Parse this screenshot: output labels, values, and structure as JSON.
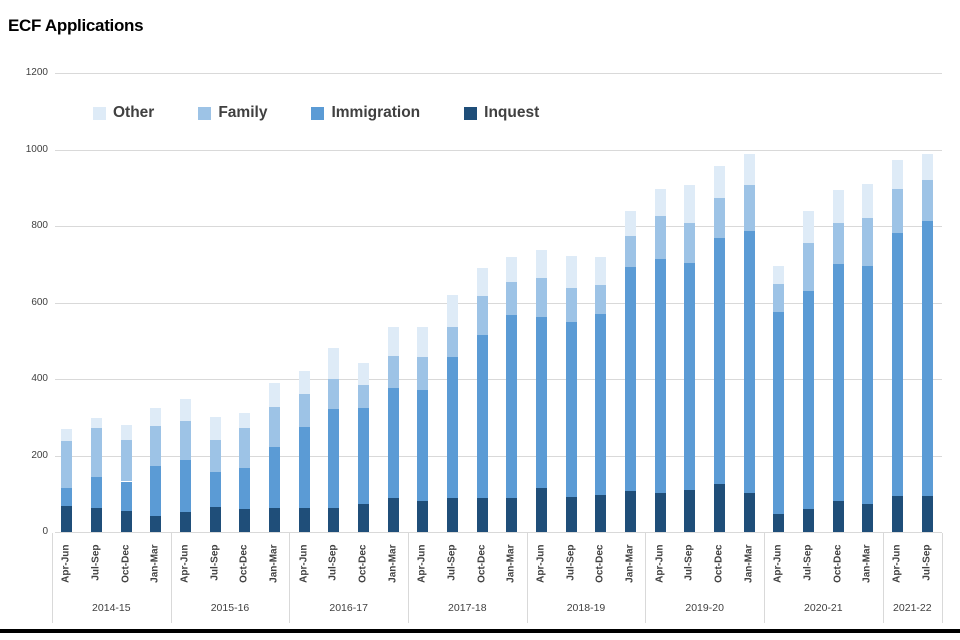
{
  "page": {
    "title": "ECF Applications"
  },
  "chart_data": {
    "type": "bar",
    "stacked": true,
    "title": "ECF Applications",
    "grid": true,
    "legend_position": "inside-top-left",
    "legend": [
      {
        "label": "Other",
        "color": "#deebf7"
      },
      {
        "label": "Family",
        "color": "#9dc3e6"
      },
      {
        "label": "Immigration",
        "color": "#5b9bd5"
      },
      {
        "label": "Inquest",
        "color": "#1f4e79"
      }
    ],
    "ylim": [
      0,
      1200
    ],
    "yticks": [
      0,
      200,
      400,
      600,
      800,
      1000,
      1200
    ],
    "groups": [
      {
        "year": "2014-15",
        "quarters": [
          "Apr-Jun",
          "Jul-Sep",
          "Oct-Dec",
          "Jan-Mar"
        ]
      },
      {
        "year": "2015-16",
        "quarters": [
          "Apr-Jun",
          "Jul-Sep",
          "Oct-Dec",
          "Jan-Mar"
        ]
      },
      {
        "year": "2016-17",
        "quarters": [
          "Apr-Jun",
          "Jul-Sep",
          "Oct-Dec",
          "Jan-Mar"
        ]
      },
      {
        "year": "2017-18",
        "quarters": [
          "Apr-Jun",
          "Jul-Sep",
          "Oct-Dec",
          "Jan-Mar"
        ]
      },
      {
        "year": "2018-19",
        "quarters": [
          "Apr-Jun",
          "Jul-Sep",
          "Oct-Dec",
          "Jan-Mar"
        ]
      },
      {
        "year": "2019-20",
        "quarters": [
          "Apr-Jun",
          "Jul-Sep",
          "Oct-Dec",
          "Jan-Mar"
        ]
      },
      {
        "year": "2020-21",
        "quarters": [
          "Apr-Jun",
          "Jul-Sep",
          "Oct-Dec",
          "Jan-Mar"
        ]
      },
      {
        "year": "2021-22",
        "quarters": [
          "Apr-Jun",
          "Jul-Sep"
        ]
      }
    ],
    "series": [
      {
        "name": "Inquest",
        "color": "#1f4e79",
        "values": [
          68,
          63,
          56,
          42,
          53,
          66,
          60,
          63,
          63,
          64,
          73,
          90,
          82,
          90,
          90,
          90,
          115,
          92,
          97,
          108,
          103,
          111,
          125,
          101,
          46,
          61,
          81,
          73,
          95,
          94
        ]
      },
      {
        "name": "Immigration",
        "color": "#5b9bd5",
        "values": [
          47,
          81,
          76,
          131,
          134,
          92,
          107,
          159,
          212,
          258,
          252,
          287,
          289,
          368,
          425,
          477,
          446,
          457,
          473,
          584,
          611,
          592,
          643,
          685,
          528,
          570,
          620,
          623,
          687,
          720
        ]
      },
      {
        "name": "Family",
        "color": "#9dc3e6",
        "values": [
          124,
          128,
          108,
          103,
          103,
          83,
          105,
          105,
          85,
          78,
          60,
          83,
          87,
          79,
          103,
          86,
          103,
          88,
          76,
          83,
          112,
          105,
          106,
          120,
          74,
          124,
          107,
          126,
          114,
          106
        ]
      },
      {
        "name": "Other",
        "color": "#deebf7",
        "values": [
          31,
          26,
          41,
          49,
          58,
          59,
          38,
          63,
          60,
          80,
          58,
          75,
          79,
          83,
          72,
          65,
          72,
          85,
          72,
          65,
          72,
          100,
          83,
          82,
          47,
          84,
          85,
          87,
          76,
          67
        ]
      }
    ]
  }
}
